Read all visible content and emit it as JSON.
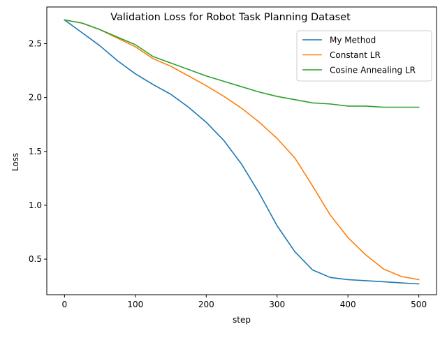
{
  "chart_data": {
    "type": "line",
    "title": "Validation Loss for Robot Task Planning Dataset",
    "xlabel": "step",
    "ylabel": "Loss",
    "xlim": [
      -25,
      525
    ],
    "ylim": [
      0.17,
      2.84
    ],
    "xticks": [
      0,
      100,
      200,
      300,
      400,
      500
    ],
    "xtick_labels": [
      "0",
      "100",
      "200",
      "300",
      "400",
      "500"
    ],
    "yticks": [
      0.5,
      1.0,
      1.5,
      2.0,
      2.5
    ],
    "ytick_labels": [
      "0.5",
      "1.0",
      "1.5",
      "2.0",
      "2.5"
    ],
    "grid": false,
    "legend_position": "top-right",
    "x": [
      0,
      25,
      50,
      75,
      100,
      125,
      150,
      175,
      200,
      225,
      250,
      275,
      300,
      325,
      350,
      375,
      400,
      425,
      450,
      475,
      500
    ],
    "series": [
      {
        "name": "My Method",
        "color": "#1f77b4",
        "values": [
          2.72,
          2.6,
          2.48,
          2.34,
          2.22,
          2.12,
          2.03,
          1.91,
          1.77,
          1.6,
          1.38,
          1.11,
          0.81,
          0.57,
          0.4,
          0.33,
          0.31,
          0.3,
          0.29,
          0.28,
          0.27
        ]
      },
      {
        "name": "Constant LR",
        "color": "#ff7f0e",
        "values": [
          2.72,
          2.69,
          2.63,
          2.55,
          2.47,
          2.36,
          2.29,
          2.2,
          2.11,
          2.01,
          1.9,
          1.77,
          1.62,
          1.44,
          1.18,
          0.91,
          0.7,
          0.54,
          0.41,
          0.34,
          0.31
        ]
      },
      {
        "name": "Cosine Annealing LR",
        "color": "#2ca02c",
        "values": [
          2.72,
          2.69,
          2.63,
          2.56,
          2.49,
          2.38,
          2.32,
          2.26,
          2.2,
          2.15,
          2.1,
          2.05,
          2.01,
          1.98,
          1.95,
          1.94,
          1.92,
          1.92,
          1.91,
          1.91,
          1.91
        ]
      }
    ]
  }
}
